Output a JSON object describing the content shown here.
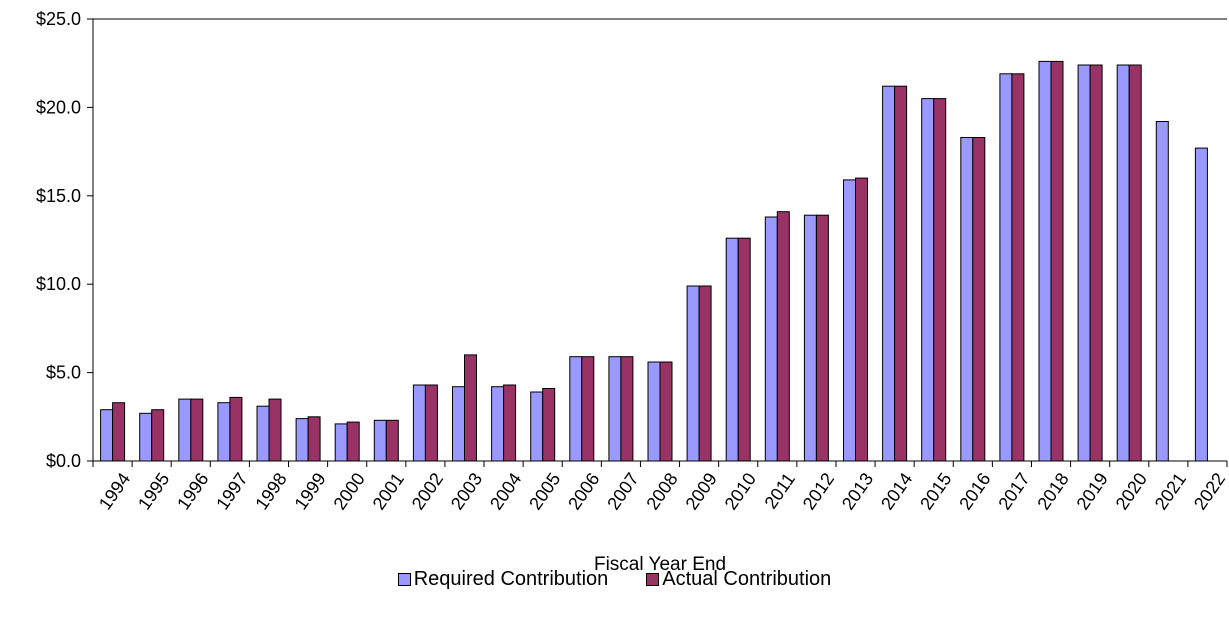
{
  "chart_data": {
    "type": "bar",
    "xlabel": "Fiscal Year End",
    "ylabel": "",
    "ylim": [
      0,
      25
    ],
    "yticks": [
      "$0.0",
      "$5.0",
      "$10.0",
      "$15.0",
      "$20.0",
      "$25.0"
    ],
    "yticks_values": [
      0,
      5,
      10,
      15,
      20,
      25
    ],
    "grid": false,
    "legend_position": "bottom",
    "categories": [
      "1994",
      "1995",
      "1996",
      "1997",
      "1998",
      "1999",
      "2000",
      "2001",
      "2002",
      "2003",
      "2004",
      "2005",
      "2006",
      "2007",
      "2008",
      "2009",
      "2010",
      "2011",
      "2012",
      "2013",
      "2014",
      "2015",
      "2016",
      "2017",
      "2018",
      "2019",
      "2020",
      "2021",
      "2022"
    ],
    "series": [
      {
        "name": "Required Contribution",
        "color": "#9999ff",
        "values": [
          2.9,
          2.7,
          3.5,
          3.3,
          3.1,
          2.4,
          2.1,
          2.3,
          4.3,
          4.2,
          4.2,
          3.9,
          5.9,
          5.9,
          5.6,
          9.9,
          12.6,
          13.8,
          13.9,
          15.9,
          21.2,
          20.5,
          18.3,
          21.9,
          22.6,
          22.4,
          22.4,
          19.2,
          17.7
        ]
      },
      {
        "name": "Actual Contribution",
        "color": "#993366",
        "values": [
          3.3,
          2.9,
          3.5,
          3.6,
          3.5,
          2.5,
          2.2,
          2.3,
          4.3,
          6.0,
          4.3,
          4.1,
          5.9,
          5.9,
          5.6,
          9.9,
          12.6,
          14.1,
          13.9,
          16.0,
          21.2,
          20.5,
          18.3,
          21.9,
          22.6,
          22.4,
          22.4,
          null,
          null
        ]
      }
    ]
  }
}
